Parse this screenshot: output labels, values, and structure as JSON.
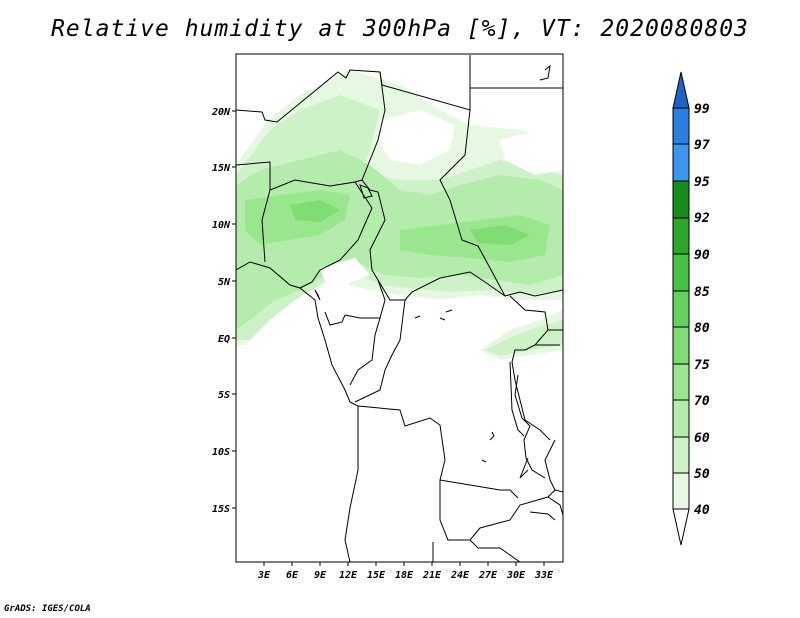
{
  "title": "Relative humidity at 300hPa [%], VT: 2020080803",
  "credit": "GrADS: IGES/COLA",
  "map": {
    "lon_range": [
      0,
      35
    ],
    "lat_range": [
      -19,
      24
    ],
    "x_tick_labels": [
      "3E",
      "6E",
      "9E",
      "12E",
      "15E",
      "18E",
      "21E",
      "24E",
      "27E",
      "30E",
      "33E"
    ],
    "y_tick_labels": [
      "20N",
      "15N",
      "10N",
      "5N",
      "EQ",
      "5S",
      "10S",
      "15S"
    ]
  },
  "colorbar": {
    "levels": [
      "40",
      "50",
      "60",
      "70",
      "75",
      "80",
      "85",
      "90",
      "92",
      "95",
      "97",
      "99"
    ],
    "colors": [
      "#e6f8e1",
      "#cdf2c7",
      "#b4ecab",
      "#9ae68f",
      "#80dd75",
      "#64d25c",
      "#48c042",
      "#2ea62b",
      "#1a8c1b",
      "#3c96f0",
      "#2c7fe0",
      "#1e64c8"
    ]
  },
  "humidity_regions": [
    {
      "desc": "northern band",
      "min_pct": 50,
      "max_pct": 75
    },
    {
      "desc": "equatorial west",
      "min_pct": 50,
      "max_pct": 70
    }
  ]
}
